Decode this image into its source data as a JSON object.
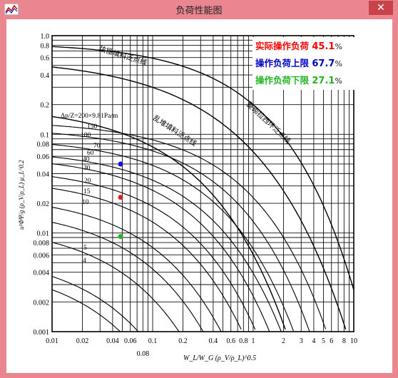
{
  "window": {
    "title": "负荷性能图",
    "close_glyph": "✕",
    "app_icon": "app-icon"
  },
  "legend": {
    "items": [
      {
        "label": "实际操作负荷",
        "value": "45.1",
        "unit": "%",
        "color": "#ff0000"
      },
      {
        "label": "操作负荷上限",
        "value": "67.7",
        "unit": "%",
        "color": "#0000c8"
      },
      {
        "label": "操作负荷下限",
        "value": "27.1",
        "unit": "%",
        "color": "#22b422"
      }
    ]
  },
  "chart_data": {
    "type": "scatter",
    "xscale": "log",
    "yscale": "log",
    "xlim": [
      0.01,
      10
    ],
    "ylim": [
      0.001,
      1.0
    ],
    "grid": true,
    "x_ticks": [
      "0.01",
      "0.02",
      "0.04",
      "0.06",
      "0.1",
      "0.2",
      "0.4",
      "0.6",
      "0.8",
      "1",
      "2",
      "4",
      "6",
      "8",
      "10"
    ],
    "x_tick_values": [
      0.01,
      0.02,
      0.04,
      0.06,
      0.1,
      0.2,
      0.4,
      0.6,
      0.8,
      1,
      2,
      4,
      6,
      8,
      10
    ],
    "x_extra_ticks": [
      "0.08",
      "3",
      "5"
    ],
    "x_extra_tick_values": [
      0.08,
      3,
      5
    ],
    "y_ticks": [
      "1.0",
      "0.8",
      "0.6",
      "0.4",
      "0.2",
      "0.1",
      "0.08",
      "0.06",
      "0.04",
      "0.02",
      "0.01",
      "0.008",
      "0.006",
      "0.004",
      "0.002",
      "0.001"
    ],
    "y_tick_values": [
      1.0,
      0.8,
      0.6,
      0.4,
      0.2,
      0.1,
      0.08,
      0.06,
      0.04,
      0.02,
      0.01,
      0.008,
      0.006,
      0.004,
      0.002,
      0.001
    ],
    "xlabel": "W_L/W_G (ρ_V/ρ_L)^0.5",
    "ylabel": "u²ΦΨ/g (ρ_V/ρ_L) μ_L^0.2",
    "flood_lines": [
      {
        "label": "弦栅填料泛点线",
        "a": 0.6,
        "b": 2.2
      },
      {
        "label": "乱堆填料泛点线",
        "a": 0.2,
        "b": 3.5
      },
      {
        "label": "整砌拉西环泛点线",
        "a": 0.85,
        "b": 1.45
      }
    ],
    "dp_curves": [
      {
        "label": "Δp/Z=200×9.81Pa/m",
        "y0": 0.138,
        "b": 1.8
      },
      {
        "label": "150",
        "y0": 0.118,
        "b": 2.2
      },
      {
        "label": "100",
        "y0": 0.093,
        "b": 2.6
      },
      {
        "label": "70",
        "y0": 0.071,
        "b": 2.9
      },
      {
        "label": "60",
        "y0": 0.062,
        "b": 3.3
      },
      {
        "label": "40",
        "y0": 0.047,
        "b": 3.7
      },
      {
        "label": "30",
        "y0": 0.037,
        "b": 4.2
      },
      {
        "label": "20",
        "y0": 0.025,
        "b": 5.0
      },
      {
        "label": "15",
        "y0": 0.0185,
        "b": 5.8
      },
      {
        "label": "10",
        "y0": 0.0125,
        "b": 7.0
      },
      {
        "label": "5",
        "y0": 0.0064,
        "b": 9.0
      },
      {
        "label": "4",
        "y0": 0.005,
        "b": 10.0
      }
    ],
    "points": [
      {
        "name": "操作负荷上限",
        "x": 0.048,
        "y": 0.05,
        "color": "#1111d8"
      },
      {
        "name": "实际操作负荷",
        "x": 0.048,
        "y": 0.023,
        "color": "#e02020"
      },
      {
        "name": "操作负荷下限",
        "x": 0.048,
        "y": 0.0092,
        "color": "#22b422"
      }
    ]
  }
}
